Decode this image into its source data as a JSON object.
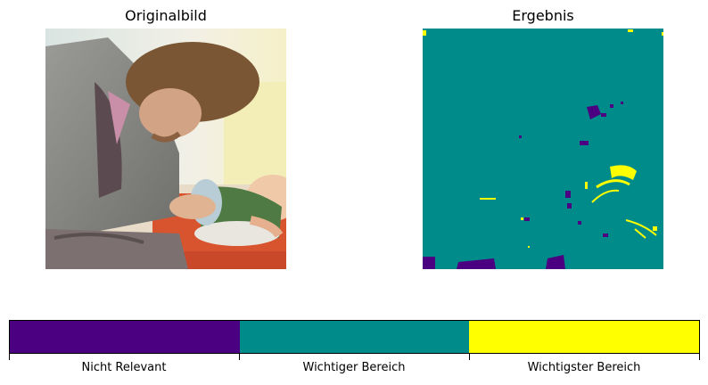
{
  "panels": {
    "left_title": "Originalbild",
    "right_title": "Ergebnis"
  },
  "colorbar": {
    "labels": [
      "Nicht Relevant",
      "Wichtiger Bereich",
      "Wichtigster Bereich"
    ],
    "colors": [
      "#4b0082",
      "#008b8b",
      "#ffff00"
    ]
  }
}
